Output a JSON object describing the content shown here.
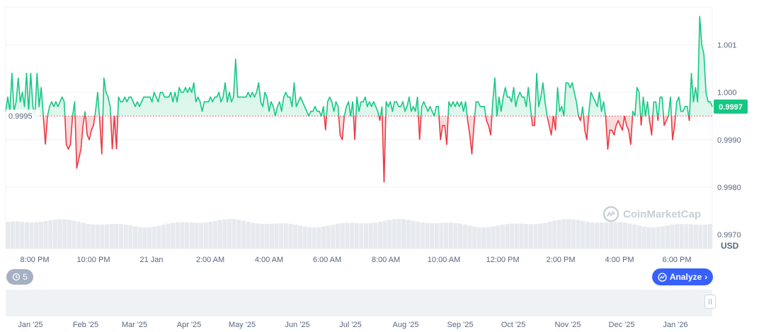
{
  "chart_data": {
    "type": "line",
    "baseline": 0.9995,
    "ylim": [
      0.9967,
      1.0018
    ],
    "yticks": [
      "1.001",
      "1.000",
      "0.9990",
      "0.9980",
      "0.9970"
    ],
    "ytick_values": [
      1.001,
      1.0,
      0.999,
      0.998,
      0.997
    ],
    "xticks": [
      "8:00 PM",
      "10:00 PM",
      "21 Jan",
      "2:00 AM",
      "4:00 AM",
      "6:00 AM",
      "8:00 AM",
      "10:00 AM",
      "12:00 PM",
      "2:00 PM",
      "4:00 PM",
      "6:00 PM"
    ],
    "baseline_label": "0.9995",
    "current_value": 0.9997,
    "current_label": "0.9997",
    "currency": "USD",
    "colors": {
      "up": "#16c784",
      "down": "#ea3943",
      "price_tag": "#16c784",
      "volume": "#e6e9ee"
    },
    "y": [
      0.9996,
      0.9999,
      0.9996,
      1.0004,
      0.9996,
      0.9998,
      1.0003,
      0.9998,
      1.0,
      0.9997,
      1.0004,
      0.9996,
      1.0004,
      0.9997,
      0.9995,
      1.0004,
      0.9997,
      1.0001,
      0.9995,
      0.9989,
      0.9995,
      0.9997,
      0.9998,
      0.9997,
      0.9998,
      0.9997,
      0.9998,
      0.9999,
      0.9998,
      0.9989,
      0.9988,
      0.9989,
      0.9995,
      0.9998,
      0.9984,
      0.9986,
      0.9988,
      0.9993,
      0.9996,
      0.9991,
      0.999,
      0.9992,
      0.9993,
      0.9996,
      1.0,
      0.9994,
      0.9987,
      1.0003,
      1.0,
      0.9999,
      0.9997,
      0.9988,
      0.9995,
      0.9988,
      0.9999,
      0.9998,
      0.9998,
      0.9999,
      0.9998,
      0.9999,
      0.9999,
      0.9998,
      0.9997,
      0.9998,
      0.9997,
      0.9998,
      0.9999,
      0.9999,
      0.9999,
      0.9999,
      0.9998,
      1.0,
      0.9999,
      0.9998,
      1.0,
      1.0,
      0.9999,
      0.9999,
      0.9999,
      1.0,
      0.9998,
      1.0,
      0.9998,
      1.0001,
      1.0,
      1.0,
      1.0001,
      1.0,
      1.0001,
      1.0,
      1.0002,
      0.9998,
      0.9999,
      0.9998,
      0.9996,
      0.9998,
      0.9998,
      0.9998,
      0.9999,
      0.9998,
      0.9999,
      0.9999,
      1.0,
      0.9998,
      0.9999,
      1.0002,
      0.9998,
      1.0,
      0.9998,
      0.9999,
      1.0007,
      0.9999,
      0.9999,
      0.9999,
      0.9999,
      0.9999,
      1.0,
      0.9999,
      1.0,
      0.9999,
      1.0,
      1.0002,
      0.9998,
      0.9997,
      1.0,
      0.9999,
      0.9996,
      0.9998,
      0.9997,
      0.9995,
      0.9997,
      0.9998,
      0.9996,
      0.9999,
      1.0,
      0.9999,
      0.9999,
      0.9997,
      1.0002,
      0.9997,
      0.9998,
      0.9999,
      0.9998,
      0.9997,
      0.9996,
      0.9995,
      0.9996,
      0.9996,
      0.9997,
      0.9996,
      0.9996,
      0.9995,
      0.9997,
      0.9992,
      0.9998,
      0.9999,
      0.9998,
      0.9996,
      0.9998,
      0.9997,
      0.9991,
      0.999,
      0.9995,
      0.9997,
      0.9998,
      0.9995,
      0.9998,
      0.999,
      0.9999,
      0.9996,
      0.9998,
      0.9998,
      0.9999,
      0.9997,
      0.9998,
      0.9997,
      0.9998,
      0.9997,
      0.9996,
      0.9994,
      0.9997,
      0.9981,
      0.9998,
      0.9997,
      0.9998,
      0.9996,
      0.9998,
      0.9998,
      0.9997,
      0.9997,
      0.9998,
      0.9996,
      0.9997,
      0.9999,
      0.9996,
      0.9997,
      0.9996,
      0.9999,
      0.999,
      0.9997,
      0.9998,
      0.9997,
      0.9996,
      0.9997,
      0.9996,
      0.9995,
      0.9997,
      0.9997,
      0.999,
      0.9993,
      0.9993,
      0.9989,
      0.9998,
      0.9997,
      0.9998,
      0.9997,
      0.9998,
      0.9997,
      0.9998,
      0.9996,
      0.9998,
      0.9994,
      0.9991,
      0.9987,
      0.9993,
      0.9998,
      0.9998,
      0.9997,
      0.9997,
      0.9997,
      0.9994,
      0.9993,
      0.9991,
      0.9998,
      1.0003,
      0.9995,
      0.9999,
      0.9996,
      0.9999,
      1.0001,
      0.9999,
      0.9999,
      0.9998,
      1.0001,
      0.9997,
      0.9999,
      1.0,
      0.9999,
      0.9999,
      0.9997,
      1.0001,
      0.9997,
      0.9993,
      0.9993,
      1.0004,
      0.9997,
      0.9999,
      1.0002,
      0.9998,
      0.9995,
      0.9993,
      0.9991,
      0.9995,
      0.9992,
      1.0001,
      0.9996,
      0.9997,
      0.9995,
      1.0002,
      1.0002,
      1.0001,
      1.0002,
      1.0,
      0.9998,
      0.9995,
      0.9994,
      0.9997,
      0.9992,
      0.999,
      0.9996,
      1.0,
      0.9999,
      0.9998,
      0.9997,
      1.0,
      0.9996,
      0.9998,
      0.9995,
      0.9988,
      0.9992,
      0.9992,
      0.9991,
      0.9993,
      0.9994,
      0.9993,
      0.9992,
      0.9995,
      0.9993,
      0.9992,
      0.9989,
      0.9996,
      0.9995,
      1.0001,
      1.0,
      0.9993,
      0.9999,
      0.9995,
      0.9998,
      0.9994,
      0.9991,
      0.9998,
      0.9998,
      0.9994,
      0.9999,
      0.9999,
      0.9993,
      0.9994,
      0.9995,
      0.9999,
      0.999,
      0.9993,
      0.9998,
      0.9999,
      0.9996,
      0.9996,
      0.9997,
      0.9997,
      0.9994,
      1.0004,
      0.9998,
      1.0001,
      0.9998,
      1.0016,
      1.001,
      1.0008,
      1.0,
      0.9998,
      0.9998,
      0.9997
    ]
  },
  "navigator": {
    "xticks": [
      "Jan '25",
      "Feb '25",
      "Mar '25",
      "Apr '25",
      "May '25",
      "Jun '25",
      "Jul '25",
      "Aug '25",
      "Sep '25",
      "Oct '25",
      "Nov '25",
      "Dec '25",
      "Jan '26"
    ]
  },
  "controls": {
    "history_count": "5",
    "analyze_label": "Analyze"
  },
  "branding": {
    "watermark_text": "CoinMarketCap"
  }
}
